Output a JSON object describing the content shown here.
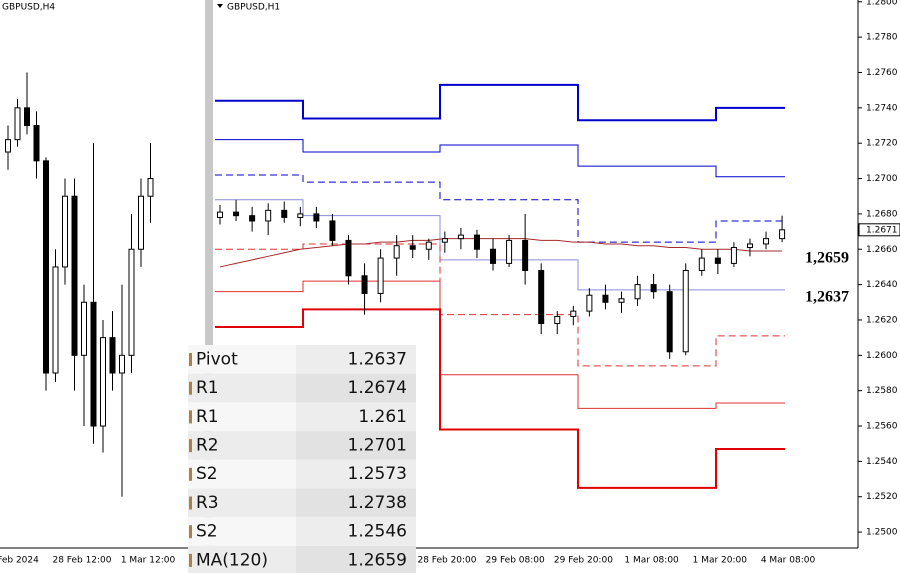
{
  "chart_data": [
    {
      "type": "candlestick",
      "title": "GBPUSD,H4",
      "x_labels": [
        "Feb 2024",
        "28 Feb 12:00",
        "1 Mar 12:00"
      ],
      "ylim": [
        1.2491,
        1.2801
      ],
      "open": [
        1.2715,
        1.2722,
        1.274,
        1.273,
        1.271,
        1.259,
        1.265,
        1.269,
        1.26,
        1.263,
        1.256,
        1.261,
        1.259,
        1.26,
        1.266,
        1.269
      ],
      "high": [
        1.273,
        1.2745,
        1.276,
        1.2738,
        1.2712,
        1.266,
        1.27,
        1.27,
        1.264,
        1.272,
        1.262,
        1.2625,
        1.264,
        1.268,
        1.27,
        1.272
      ],
      "low": [
        1.2705,
        1.2718,
        1.2725,
        1.27,
        1.258,
        1.2585,
        1.264,
        1.258,
        1.256,
        1.255,
        1.2545,
        1.258,
        1.252,
        1.259,
        1.265,
        1.2675
      ],
      "close": [
        1.2722,
        1.274,
        1.273,
        1.271,
        1.259,
        1.265,
        1.269,
        1.26,
        1.263,
        1.256,
        1.261,
        1.259,
        1.26,
        1.266,
        1.269,
        1.27
      ]
    },
    {
      "type": "candlestick",
      "title": "GBPUSD,H1",
      "x_labels": [
        "28 Feb 20:00",
        "29 Feb 08:00",
        "29 Feb 20:00",
        "1 Mar 08:00",
        "1 Mar 20:00",
        "4 Mar 08:00"
      ],
      "ylim": [
        1.2491,
        1.2801
      ],
      "yticks": [
        {
          "value": 1.25,
          "label": "1.2500"
        },
        {
          "value": 1.252,
          "label": "1.2520"
        },
        {
          "value": 1.254,
          "label": "1.2540"
        },
        {
          "value": 1.256,
          "label": "1.2560"
        },
        {
          "value": 1.258,
          "label": "1.2580"
        },
        {
          "value": 1.26,
          "label": "1.2600"
        },
        {
          "value": 1.262,
          "label": "1.2620"
        },
        {
          "value": 1.264,
          "label": "1.2640"
        },
        {
          "value": 1.266,
          "label": "1.2660"
        },
        {
          "value": 1.268,
          "label": "1.2680"
        },
        {
          "value": 1.27,
          "label": "1.2700"
        },
        {
          "value": 1.272,
          "label": "1.2720"
        },
        {
          "value": 1.274,
          "label": "1.2740"
        },
        {
          "value": 1.276,
          "label": "1.2760"
        },
        {
          "value": 1.278,
          "label": "1.2780"
        },
        {
          "value": 1.28,
          "label": "1.2800"
        }
      ],
      "last_price": 1.2671,
      "open": [
        1.2678,
        1.2681,
        1.2679,
        1.2676,
        1.2682,
        1.2678,
        1.268,
        1.2676,
        1.2665,
        1.2645,
        1.2635,
        1.2655,
        1.2662,
        1.266,
        1.2664,
        1.2666,
        1.2668,
        1.266,
        1.2652,
        1.2665,
        1.2648,
        1.2618,
        1.2622,
        1.2625,
        1.2634,
        1.263,
        1.2632,
        1.264,
        1.2636,
        1.2602,
        1.2648,
        1.2655,
        1.2652,
        1.2661,
        1.2663,
        1.2666
      ],
      "high": [
        1.2685,
        1.2688,
        1.2684,
        1.2686,
        1.2687,
        1.2684,
        1.2684,
        1.268,
        1.2668,
        1.2652,
        1.266,
        1.2668,
        1.2668,
        1.2666,
        1.267,
        1.2672,
        1.2671,
        1.2666,
        1.2668,
        1.268,
        1.2652,
        1.2625,
        1.2628,
        1.2638,
        1.264,
        1.2636,
        1.2645,
        1.2646,
        1.264,
        1.2652,
        1.266,
        1.266,
        1.2664,
        1.2666,
        1.267,
        1.2679
      ],
      "low": [
        1.2674,
        1.2676,
        1.267,
        1.2668,
        1.2675,
        1.2673,
        1.2672,
        1.2662,
        1.264,
        1.2623,
        1.263,
        1.2645,
        1.2655,
        1.2654,
        1.2658,
        1.266,
        1.2655,
        1.2648,
        1.265,
        1.264,
        1.2612,
        1.2612,
        1.2617,
        1.2622,
        1.2626,
        1.2624,
        1.2628,
        1.2632,
        1.2598,
        1.26,
        1.2645,
        1.2646,
        1.265,
        1.2656,
        1.266,
        1.2664
      ],
      "close": [
        1.2681,
        1.2679,
        1.2676,
        1.2682,
        1.2678,
        1.268,
        1.2676,
        1.2665,
        1.2645,
        1.2635,
        1.2655,
        1.2662,
        1.266,
        1.2664,
        1.2666,
        1.2668,
        1.266,
        1.2652,
        1.2665,
        1.2648,
        1.2618,
        1.2622,
        1.2625,
        1.2634,
        1.263,
        1.2632,
        1.264,
        1.2636,
        1.2602,
        1.2648,
        1.2655,
        1.2652,
        1.2661,
        1.2663,
        1.2666,
        1.2671
      ],
      "ma": {
        "color": "#a52a2a",
        "values": [
          1.265,
          1.2652,
          1.2654,
          1.2656,
          1.2658,
          1.266,
          1.2661,
          1.2662,
          1.2663,
          1.2663,
          1.2664,
          1.2664,
          1.2665,
          1.2665,
          1.2666,
          1.2666,
          1.2666,
          1.2666,
          1.2666,
          1.2666,
          1.2665,
          1.2665,
          1.2664,
          1.2664,
          1.2663,
          1.2663,
          1.2662,
          1.2662,
          1.2661,
          1.2661,
          1.266,
          1.266,
          1.266,
          1.2659,
          1.2659,
          1.2659
        ]
      },
      "levels": {
        "categories": [
          null,
          null,
          null,
          null,
          null
        ],
        "series": [
          {
            "color": "#0000cc",
            "width": 2,
            "dashed": false,
            "values": [
              1.2744,
              1.2734,
              1.2753,
              1.2733,
              1.274
            ]
          },
          {
            "color": "#0000cc",
            "width": 1,
            "dashed": false,
            "values": [
              1.2722,
              1.2715,
              1.2719,
              1.2707,
              1.2701
            ]
          },
          {
            "color": "#0000cc",
            "width": 1,
            "dashed": true,
            "values": [
              1.2702,
              1.2698,
              1.2688,
              1.2664,
              1.2676
            ]
          },
          {
            "color": "#8c8cdc",
            "width": 1,
            "dashed": false,
            "values": [
              1.2688,
              1.2679,
              1.2654,
              1.2637,
              1.2637
            ]
          },
          {
            "color": "#e03030",
            "width": 1,
            "dashed": true,
            "values": [
              1.266,
              1.2663,
              1.2623,
              1.2594,
              1.2611
            ]
          },
          {
            "color": "#e03030",
            "width": 1,
            "dashed": false,
            "values": [
              1.2636,
              1.2642,
              1.2589,
              1.257,
              1.2573
            ]
          },
          {
            "color": "#e00000",
            "width": 2,
            "dashed": false,
            "values": [
              1.2616,
              1.2626,
              1.2558,
              1.2525,
              1.2547
            ]
          }
        ]
      }
    }
  ],
  "annotations": [
    {
      "text": "1,2659",
      "value": 1.2659
    },
    {
      "text": "1,2637",
      "value": 1.2637
    }
  ],
  "table": {
    "rows": [
      [
        "Pivot",
        1.2637
      ],
      [
        "R1",
        1.2674
      ],
      [
        "R1",
        1.261
      ],
      [
        "R2",
        1.2701
      ],
      [
        "S2",
        1.2573
      ],
      [
        "R3",
        1.2738
      ],
      [
        "S2",
        1.2546
      ],
      [
        "MA(120)",
        1.2659
      ]
    ]
  }
}
